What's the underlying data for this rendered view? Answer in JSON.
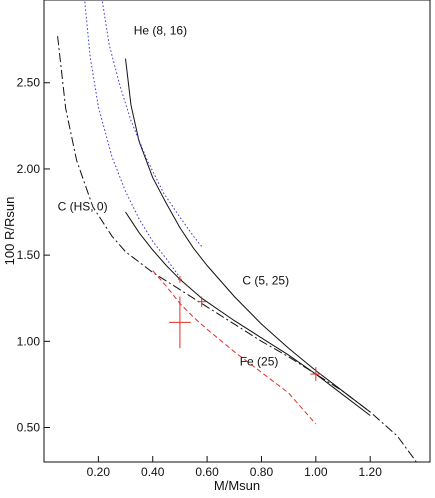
{
  "chart_data": {
    "type": "line",
    "xlabel": "M/Msun",
    "ylabel": "100 R/Rsun",
    "xlim": [
      0.0,
      1.42
    ],
    "ylim": [
      0.3,
      2.98
    ],
    "x_ticks": [
      0.2,
      0.4,
      0.6,
      0.8,
      1.0,
      1.2
    ],
    "y_ticks": [
      0.5,
      1.0,
      1.5,
      2.0,
      2.5
    ],
    "x_tick_labels": [
      "0.20",
      "0.40",
      "0.60",
      "0.80",
      "1.00",
      "1.20"
    ],
    "y_tick_labels": [
      "0.50",
      "1.00",
      "1.50",
      "2.00",
      "2.50"
    ],
    "grid": false,
    "series": [
      {
        "name": "He (8, 16)",
        "color": "#111111",
        "dash": "solid",
        "points": [
          [
            0.3,
            2.64
          ],
          [
            0.32,
            2.37
          ],
          [
            0.35,
            2.16
          ],
          [
            0.4,
            1.95
          ],
          [
            0.45,
            1.8
          ],
          [
            0.5,
            1.66
          ],
          [
            0.55,
            1.54
          ],
          [
            0.6,
            1.44
          ],
          [
            0.7,
            1.26
          ],
          [
            0.8,
            1.1
          ],
          [
            0.9,
            0.96
          ],
          [
            1.0,
            0.83
          ],
          [
            1.1,
            0.71
          ],
          [
            1.2,
            0.59
          ]
        ]
      },
      {
        "name": "C (5, 25)",
        "color": "#111111",
        "dash": "solid",
        "points": [
          [
            0.3,
            1.75
          ],
          [
            0.35,
            1.63
          ],
          [
            0.4,
            1.53
          ],
          [
            0.45,
            1.44
          ],
          [
            0.5,
            1.36
          ],
          [
            0.58,
            1.25
          ],
          [
            0.7,
            1.12
          ],
          [
            0.8,
            1.02
          ],
          [
            0.9,
            0.92
          ],
          [
            1.0,
            0.81
          ],
          [
            1.1,
            0.69
          ],
          [
            1.2,
            0.57
          ]
        ]
      },
      {
        "name": "C (HS, 0)",
        "color": "#111111",
        "dash": "dashdot",
        "points": [
          [
            0.05,
            2.77
          ],
          [
            0.08,
            2.35
          ],
          [
            0.12,
            2.05
          ],
          [
            0.18,
            1.78
          ],
          [
            0.25,
            1.61
          ],
          [
            0.3,
            1.52
          ],
          [
            0.4,
            1.4
          ],
          [
            0.5,
            1.3
          ],
          [
            0.6,
            1.2
          ],
          [
            0.7,
            1.1
          ],
          [
            0.8,
            1.0
          ],
          [
            0.9,
            0.91
          ],
          [
            1.0,
            0.81
          ],
          [
            1.1,
            0.71
          ],
          [
            1.2,
            0.59
          ],
          [
            1.3,
            0.45
          ],
          [
            1.37,
            0.3
          ]
        ]
      },
      {
        "name": "",
        "color": "#3b3bd6",
        "dash": "dot-blue-1",
        "points": [
          [
            0.215,
            2.97
          ],
          [
            0.24,
            2.72
          ],
          [
            0.28,
            2.48
          ],
          [
            0.32,
            2.28
          ],
          [
            0.38,
            2.05
          ],
          [
            0.44,
            1.86
          ],
          [
            0.5,
            1.72
          ],
          [
            0.55,
            1.61
          ],
          [
            0.58,
            1.55
          ]
        ]
      },
      {
        "name": "",
        "color": "#3b3bd6",
        "dash": "dot-blue-2",
        "points": [
          [
            0.15,
            2.97
          ],
          [
            0.17,
            2.65
          ],
          [
            0.2,
            2.36
          ],
          [
            0.25,
            2.07
          ],
          [
            0.3,
            1.87
          ],
          [
            0.35,
            1.71
          ],
          [
            0.4,
            1.58
          ],
          [
            0.45,
            1.48
          ],
          [
            0.5,
            1.37
          ]
        ]
      },
      {
        "name": "Fe (25)",
        "color": "#e0302a",
        "dash": "dashed",
        "points": [
          [
            0.4,
            1.41
          ],
          [
            0.45,
            1.32
          ],
          [
            0.5,
            1.22
          ],
          [
            0.55,
            1.14
          ],
          [
            0.6,
            1.07
          ],
          [
            0.7,
            0.94
          ],
          [
            0.8,
            0.82
          ],
          [
            0.9,
            0.7
          ],
          [
            1.0,
            0.52
          ]
        ]
      }
    ],
    "error_bars": [
      {
        "x": 0.5,
        "y": 1.11,
        "xerr": 0.04,
        "yerr": 0.15
      },
      {
        "x": 0.5,
        "y": 1.36,
        "xerr": 0.007,
        "yerr": 0.02
      },
      {
        "x": 0.58,
        "y": 1.23,
        "xerr": 0.015,
        "yerr": 0.03
      },
      {
        "x": 1.0,
        "y": 0.81,
        "xerr": 0.02,
        "yerr": 0.04
      }
    ],
    "annotations": [
      {
        "text": "He (8, 16)",
        "x": 0.33,
        "y": 2.78
      },
      {
        "text": "C (HS, 0)",
        "x": 0.05,
        "y": 1.76
      },
      {
        "text": "C (5, 25)",
        "x": 0.73,
        "y": 1.33
      },
      {
        "text": "Fe (25)",
        "x": 0.72,
        "y": 0.86
      }
    ],
    "colors": {
      "axis": "#111111",
      "black_curve": "#111111",
      "blue_curve": "#3b3bd6",
      "red_curve": "#e0302a"
    }
  }
}
